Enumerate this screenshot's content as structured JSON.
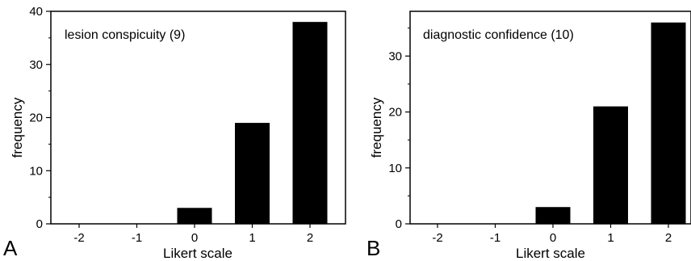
{
  "chart_data": [
    {
      "type": "bar",
      "panel_label": "A",
      "annotation": "lesion conspicuity (9)",
      "xlabel": "Likert scale",
      "ylabel": "frequency",
      "categories": [
        "-2",
        "-1",
        "0",
        "1",
        "2"
      ],
      "values": [
        0,
        0,
        3,
        19,
        38
      ],
      "ylim": [
        0,
        40
      ],
      "yticks": [
        0,
        10,
        20,
        30,
        40
      ],
      "bar_color": "#000000"
    },
    {
      "type": "bar",
      "panel_label": "B",
      "annotation": "diagnostic confidence (10)",
      "xlabel": "Likert scale",
      "ylabel": "frequency",
      "categories": [
        "-2",
        "-1",
        "0",
        "1",
        "2"
      ],
      "values": [
        0,
        0,
        3,
        21,
        36
      ],
      "ylim": [
        0,
        38
      ],
      "yticks": [
        0,
        10,
        20,
        30
      ],
      "bar_color": "#000000"
    }
  ]
}
